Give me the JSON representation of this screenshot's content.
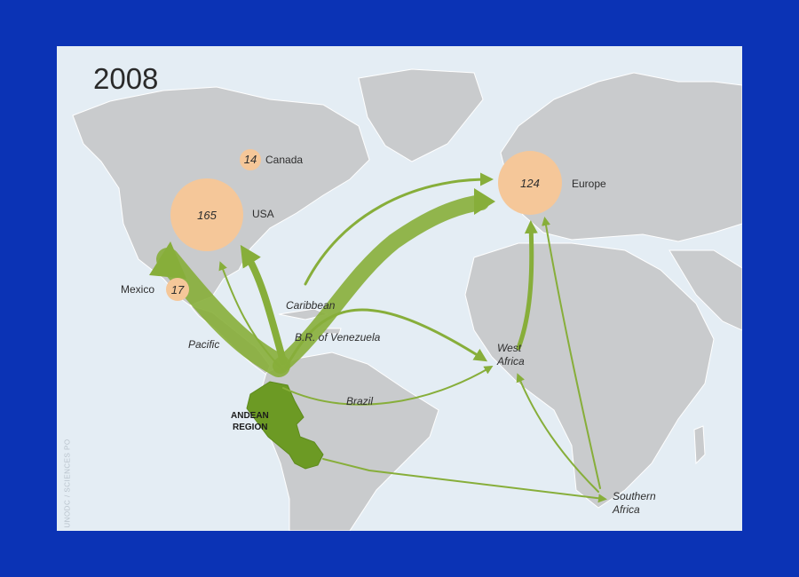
{
  "year": "2008",
  "credit": "UNODC / SCIENCES PO",
  "colors": {
    "ocean": "#e4edf4",
    "land": "#c9cbcd",
    "flow": "#87ae3a",
    "flow_dark": "#6f9a2a",
    "bubble": "#f5c799",
    "andean": "#6c9a24"
  },
  "consumer_markets": [
    {
      "name": "USA",
      "value": "165"
    },
    {
      "name": "Europe",
      "value": "124"
    },
    {
      "name": "Mexico",
      "value": "17"
    },
    {
      "name": "Canada",
      "value": "14"
    }
  ],
  "source_region": "ANDEAN REGION",
  "source_region_lines": [
    "ANDEAN",
    "REGION"
  ],
  "transit_labels": {
    "caribbean": "Caribbean",
    "venezuela": "B.R. of Venezuela",
    "pacific": "Pacific",
    "brazil": "Brazil",
    "west_africa": [
      "West",
      "Africa"
    ],
    "southern_africa": [
      "Southern",
      "Africa"
    ]
  },
  "flows": [
    {
      "from": "Andean Region",
      "to": "Mexico",
      "via": "Pacific",
      "weight": "major"
    },
    {
      "from": "Andean Region",
      "to": "Europe",
      "via": "Caribbean",
      "weight": "major"
    },
    {
      "from": "Andean Region",
      "to": "USA",
      "via": "Caribbean",
      "weight": "medium"
    },
    {
      "from": "Andean Region",
      "to": "West Africa",
      "via": "B.R. of Venezuela",
      "weight": "minor"
    },
    {
      "from": "Andean Region",
      "to": "West Africa",
      "via": "Brazil",
      "weight": "minor"
    },
    {
      "from": "Andean Region",
      "to": "Southern Africa",
      "via": "",
      "weight": "minor"
    },
    {
      "from": "West Africa",
      "to": "Europe",
      "via": "",
      "weight": "medium"
    },
    {
      "from": "Southern Africa",
      "to": "Europe",
      "via": "",
      "weight": "minor"
    },
    {
      "from": "Southern Africa",
      "to": "West Africa",
      "via": "",
      "weight": "minor"
    }
  ]
}
